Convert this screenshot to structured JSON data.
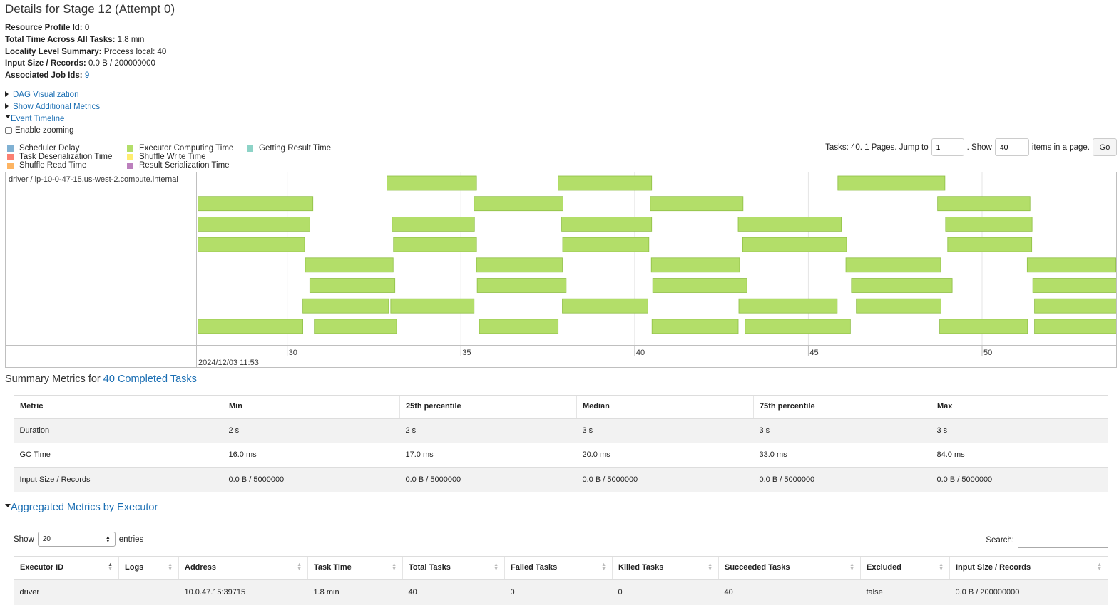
{
  "page_title": "Details for Stage 12 (Attempt 0)",
  "info": [
    {
      "label": "Resource Profile Id:",
      "value": "0"
    },
    {
      "label": "Total Time Across All Tasks:",
      "value": "1.8 min"
    },
    {
      "label": "Locality Level Summary:",
      "value": "Process local: 40"
    },
    {
      "label": "Input Size / Records:",
      "value": "0.0 B / 200000000"
    },
    {
      "label": "Associated Job Ids:",
      "value": "9"
    }
  ],
  "expanders": {
    "dag": "DAG Visualization",
    "additional_metrics": "Show Additional Metrics",
    "event_timeline": "Event Timeline"
  },
  "enable_zooming_label": "Enable zooming",
  "legend": [
    {
      "label": "Scheduler Delay",
      "color": "#80b1d3"
    },
    {
      "label": "Task Deserialization Time",
      "color": "#fb8072"
    },
    {
      "label": "Shuffle Read Time",
      "color": "#fdb462"
    },
    {
      "label": "Executor Computing Time",
      "color": "#b3de69"
    },
    {
      "label": "Shuffle Write Time",
      "color": "#ffed6f"
    },
    {
      "label": "Result Serialization Time",
      "color": "#bc80bd"
    },
    {
      "label": "Getting Result Time",
      "color": "#8dd3c7"
    }
  ],
  "pager": {
    "prefix": "Tasks: 40. 1 Pages. Jump to",
    "jump_value": "1",
    "show_label": ". Show",
    "show_value": "40",
    "suffix": "items in a page.",
    "go_label": "Go"
  },
  "timeline": {
    "executor_label": "driver / ip-10-0-47-15.us-west-2.compute.internal",
    "date_label": "2024/12/03 11:53",
    "ticks": [
      "30",
      "35",
      "40",
      "45",
      "50"
    ],
    "bar_color": "#b3de69",
    "axis_start": 27.4,
    "axis_end": 53.9,
    "tasks": [
      {
        "row": 0,
        "start": 32.87,
        "end": 35.45
      },
      {
        "row": 0,
        "start": 37.8,
        "end": 40.49
      },
      {
        "row": 0,
        "start": 45.85,
        "end": 48.93
      },
      {
        "row": 1,
        "start": 27.43,
        "end": 30.74
      },
      {
        "row": 1,
        "start": 35.38,
        "end": 37.94
      },
      {
        "row": 1,
        "start": 40.45,
        "end": 43.12
      },
      {
        "row": 1,
        "start": 48.72,
        "end": 51.38
      },
      {
        "row": 2,
        "start": 27.43,
        "end": 30.65
      },
      {
        "row": 2,
        "start": 33.02,
        "end": 35.39
      },
      {
        "row": 2,
        "start": 37.9,
        "end": 40.49
      },
      {
        "row": 2,
        "start": 42.98,
        "end": 45.95
      },
      {
        "row": 2,
        "start": 48.95,
        "end": 51.44
      },
      {
        "row": 3,
        "start": 27.43,
        "end": 30.5
      },
      {
        "row": 3,
        "start": 33.06,
        "end": 35.45
      },
      {
        "row": 3,
        "start": 37.93,
        "end": 40.41
      },
      {
        "row": 3,
        "start": 43.11,
        "end": 46.1
      },
      {
        "row": 3,
        "start": 49.01,
        "end": 51.43
      },
      {
        "row": 4,
        "start": 30.52,
        "end": 33.05
      },
      {
        "row": 4,
        "start": 35.45,
        "end": 37.92
      },
      {
        "row": 4,
        "start": 40.48,
        "end": 43.02
      },
      {
        "row": 4,
        "start": 46.08,
        "end": 48.81
      },
      {
        "row": 4,
        "start": 51.3,
        "end": 53.85
      },
      {
        "row": 5,
        "start": 30.65,
        "end": 33.1
      },
      {
        "row": 5,
        "start": 35.47,
        "end": 38.03
      },
      {
        "row": 5,
        "start": 40.52,
        "end": 43.23
      },
      {
        "row": 5,
        "start": 46.24,
        "end": 49.14
      },
      {
        "row": 5,
        "start": 51.46,
        "end": 53.94
      },
      {
        "row": 6,
        "start": 30.45,
        "end": 32.92
      },
      {
        "row": 6,
        "start": 32.98,
        "end": 35.38
      },
      {
        "row": 6,
        "start": 37.92,
        "end": 40.38
      },
      {
        "row": 6,
        "start": 43.0,
        "end": 45.83
      },
      {
        "row": 6,
        "start": 46.38,
        "end": 48.82
      },
      {
        "row": 6,
        "start": 51.51,
        "end": 53.94
      },
      {
        "row": 7,
        "start": 27.43,
        "end": 30.45
      },
      {
        "row": 7,
        "start": 30.78,
        "end": 33.15
      },
      {
        "row": 7,
        "start": 35.53,
        "end": 37.8
      },
      {
        "row": 7,
        "start": 40.5,
        "end": 42.98
      },
      {
        "row": 7,
        "start": 43.18,
        "end": 46.21
      },
      {
        "row": 7,
        "start": 48.78,
        "end": 51.31
      },
      {
        "row": 7,
        "start": 51.51,
        "end": 53.94
      }
    ]
  },
  "summary": {
    "title_prefix": "Summary Metrics for",
    "title_link": "40 Completed Tasks",
    "headers": [
      "Metric",
      "Min",
      "25th percentile",
      "Median",
      "75th percentile",
      "Max"
    ],
    "rows": [
      [
        "Duration",
        "2 s",
        "2 s",
        "3 s",
        "3 s",
        "3 s"
      ],
      [
        "GC Time",
        "16.0 ms",
        "17.0 ms",
        "20.0 ms",
        "33.0 ms",
        "84.0 ms"
      ],
      [
        "Input Size / Records",
        "0.0 B / 5000000",
        "0.0 B / 5000000",
        "0.0 B / 5000000",
        "0.0 B / 5000000",
        "0.0 B / 5000000"
      ]
    ]
  },
  "aggregated": {
    "title": "Aggregated Metrics by Executor",
    "show_label": "Show",
    "entries_value": "20",
    "entries_label": "entries",
    "search_label": "Search:",
    "headers": [
      "Executor ID",
      "Logs",
      "Address",
      "Task Time",
      "Total Tasks",
      "Failed Tasks",
      "Killed Tasks",
      "Succeeded Tasks",
      "Excluded",
      "Input Size / Records"
    ],
    "rows": [
      [
        "driver",
        "",
        "10.0.47.15:39715",
        "1.8 min",
        "40",
        "0",
        "0",
        "40",
        "false",
        "0.0 B / 200000000"
      ]
    ]
  }
}
